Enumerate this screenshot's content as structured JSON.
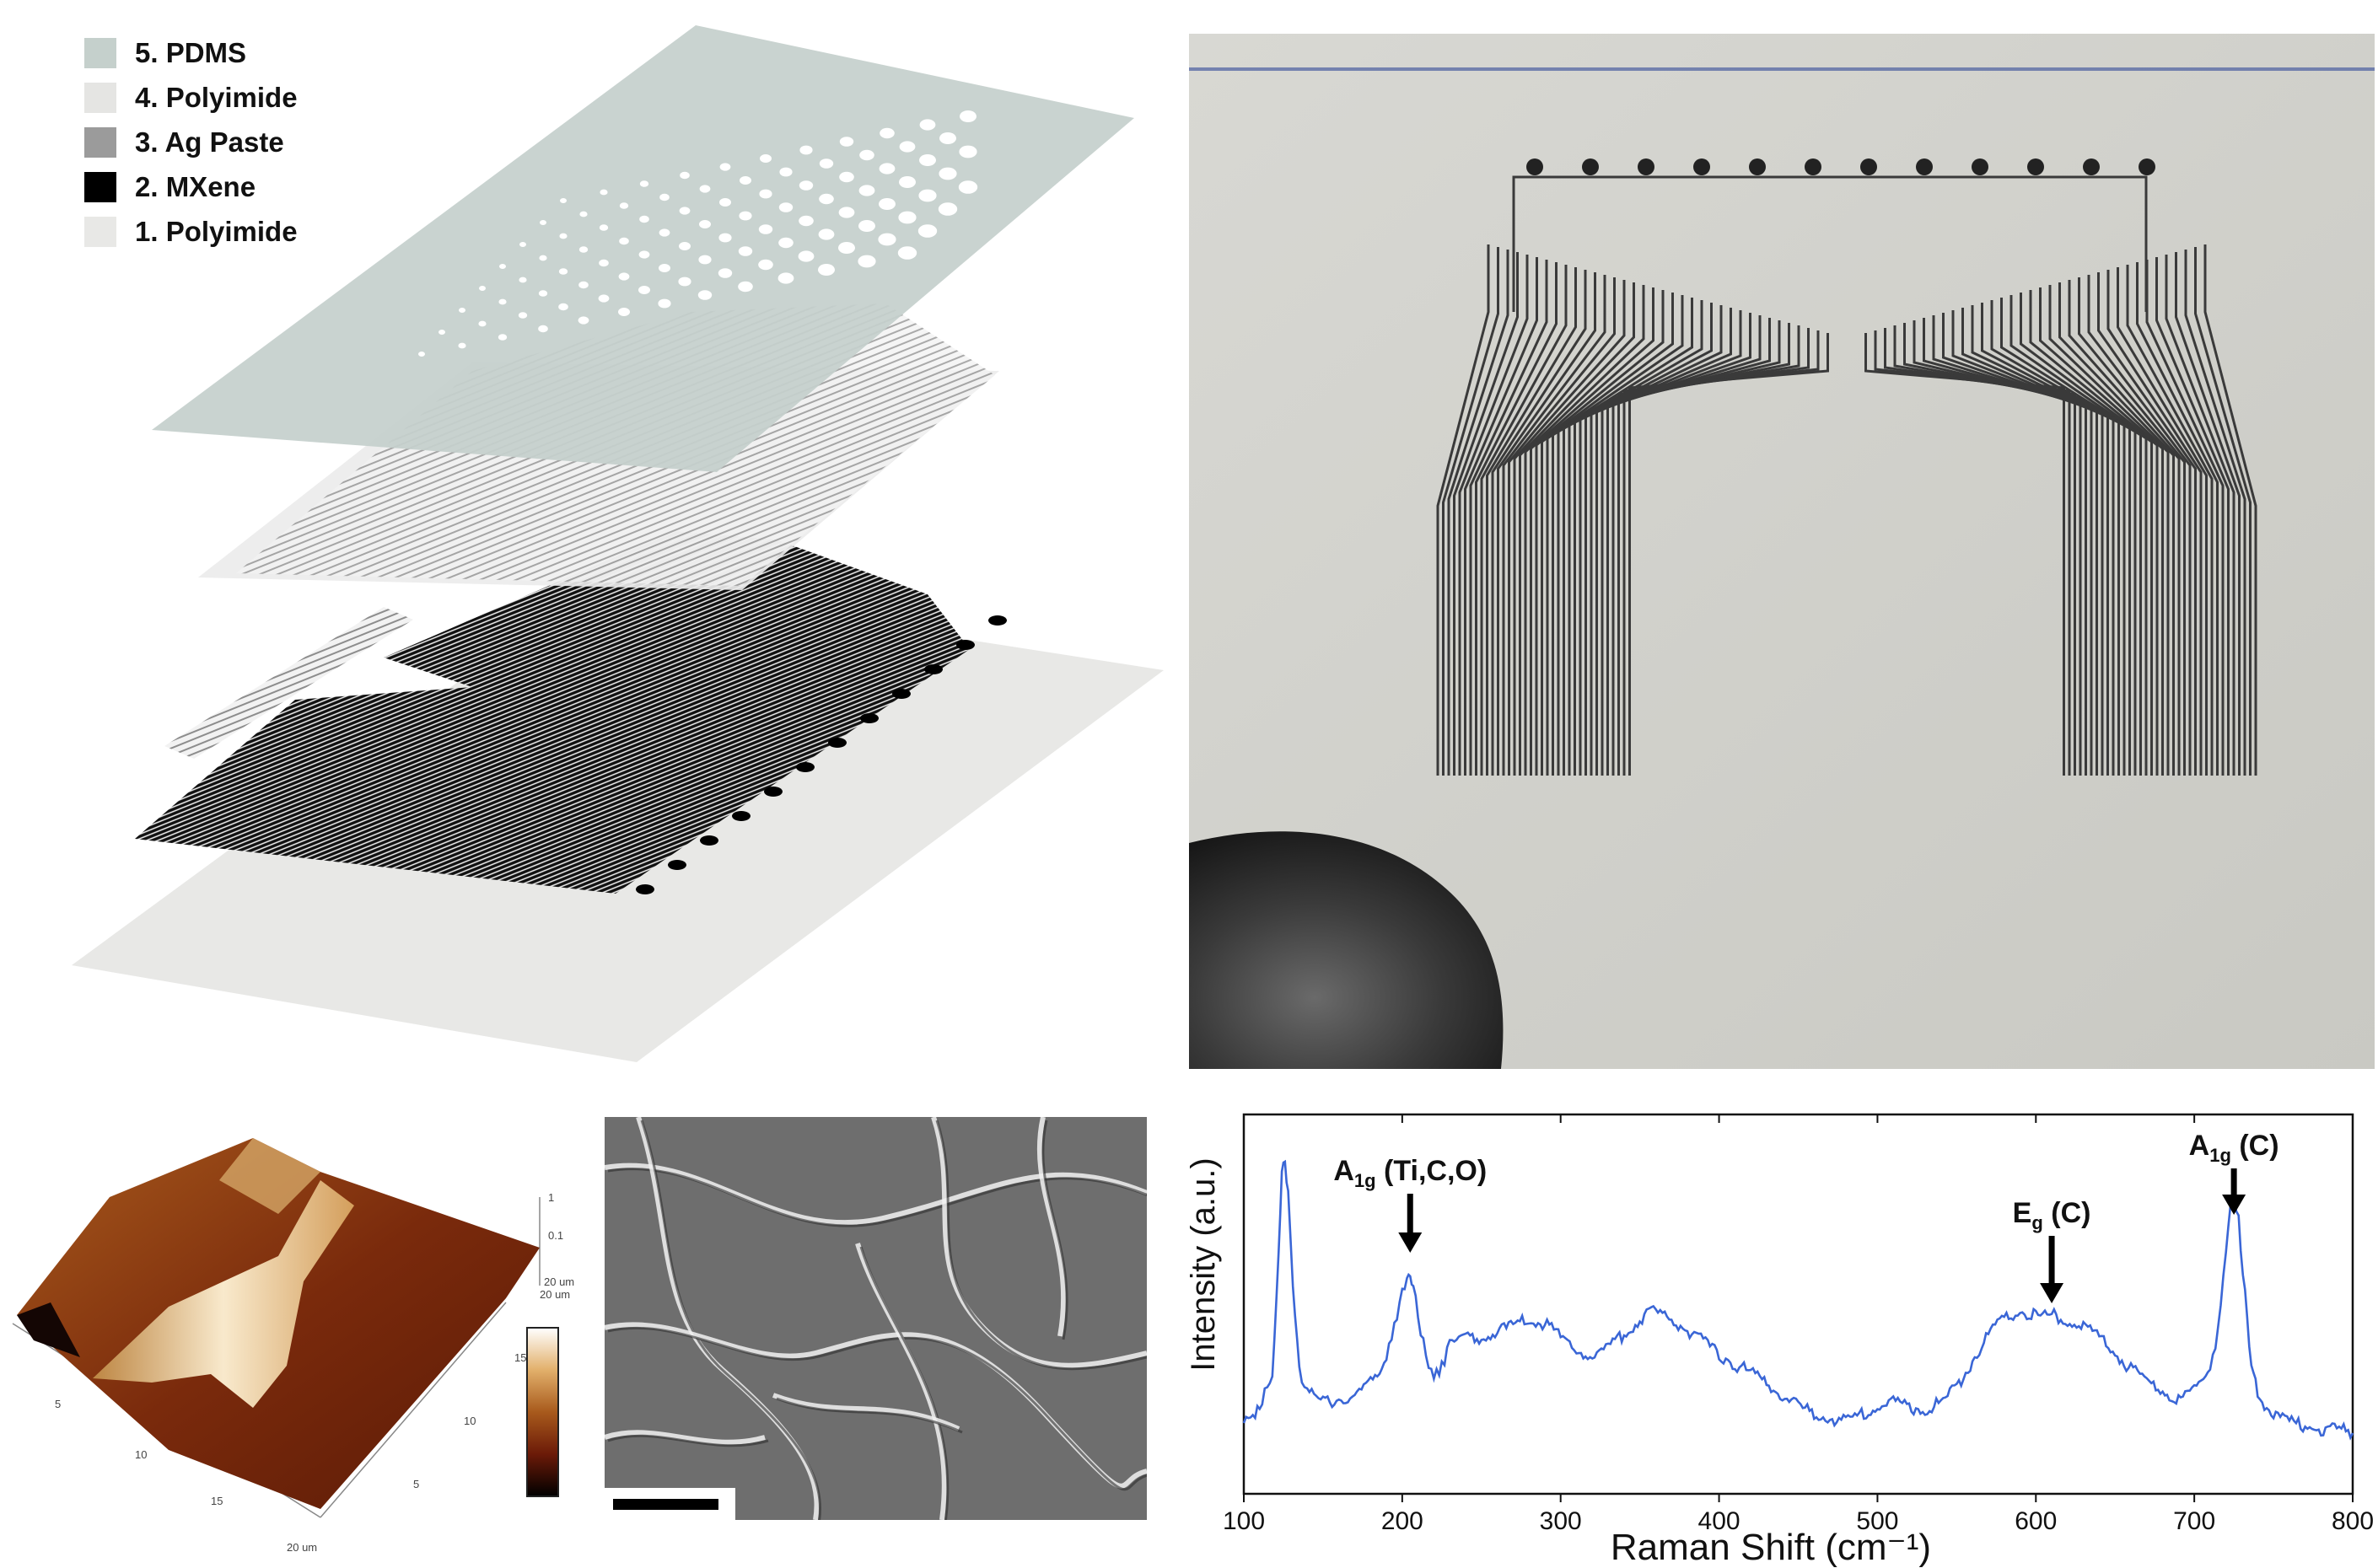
{
  "legend": {
    "items": [
      {
        "label": "5. PDMS",
        "color": "#c5d0cc"
      },
      {
        "label": "4. Polyimide",
        "color": "#e5e5e3"
      },
      {
        "label": "3. Ag Paste",
        "color": "#9b9b9b"
      },
      {
        "label": "2. MXene",
        "color": "#000000"
      },
      {
        "label": "1. Polyimide",
        "color": "#e8e8e6"
      }
    ]
  },
  "afm": {
    "z_ticks": [
      "1",
      "0.1"
    ],
    "z_unit": "20 um",
    "x_ticks": [
      "5",
      "10",
      "15",
      "20 um"
    ],
    "y_ticks": [
      "5",
      "10",
      "15",
      "20 um"
    ],
    "colors": [
      "#ffffff",
      "#e2b06b",
      "#a85a1c",
      "#6b1a08",
      "#000000"
    ]
  },
  "chart_data": {
    "type": "line",
    "title": "",
    "xlabel": "Raman Shift (cm⁻¹)",
    "ylabel": "Intensity (a.u.)",
    "xlim": [
      100,
      800
    ],
    "ylim": [
      0,
      1
    ],
    "xticks": [
      "100",
      "200",
      "300",
      "400",
      "500",
      "600",
      "700",
      "800"
    ],
    "color": "#3a66d6",
    "series": [
      {
        "x": [
          100,
          110,
          118,
          122,
          124,
          126,
          128,
          131,
          135,
          140,
          150,
          160,
          170,
          180,
          190,
          195,
          200,
          203,
          205,
          207,
          210,
          215,
          220,
          225,
          230,
          240,
          250,
          260,
          270,
          280,
          290,
          300,
          310,
          320,
          330,
          340,
          350,
          360,
          370,
          380,
          390,
          400,
          410,
          420,
          430,
          440,
          450,
          460,
          470,
          480,
          490,
          500,
          510,
          520,
          530,
          540,
          550,
          560,
          570,
          580,
          590,
          600,
          610,
          620,
          630,
          640,
          650,
          660,
          670,
          680,
          690,
          700,
          710,
          715,
          720,
          723,
          725,
          728,
          732,
          736,
          740,
          750,
          760,
          770,
          780,
          790,
          800
        ],
        "y": [
          0.2,
          0.22,
          0.32,
          0.62,
          0.85,
          0.87,
          0.8,
          0.55,
          0.32,
          0.27,
          0.24,
          0.25,
          0.26,
          0.29,
          0.36,
          0.44,
          0.53,
          0.58,
          0.58,
          0.55,
          0.46,
          0.36,
          0.31,
          0.34,
          0.39,
          0.41,
          0.41,
          0.43,
          0.44,
          0.46,
          0.45,
          0.41,
          0.38,
          0.36,
          0.38,
          0.42,
          0.46,
          0.48,
          0.46,
          0.43,
          0.4,
          0.37,
          0.34,
          0.32,
          0.29,
          0.26,
          0.23,
          0.21,
          0.2,
          0.19,
          0.21,
          0.23,
          0.24,
          0.23,
          0.22,
          0.24,
          0.28,
          0.35,
          0.42,
          0.46,
          0.48,
          0.47,
          0.47,
          0.46,
          0.44,
          0.41,
          0.37,
          0.33,
          0.3,
          0.27,
          0.25,
          0.27,
          0.33,
          0.43,
          0.64,
          0.77,
          0.78,
          0.72,
          0.53,
          0.34,
          0.26,
          0.21,
          0.19,
          0.18,
          0.17,
          0.17,
          0.16
        ]
      }
    ],
    "annotations": [
      {
        "main": "A",
        "sub": "1g",
        "rest": " (Ti,C,O)",
        "x": 205
      },
      {
        "main": "E",
        "sub": "g",
        "rest": " (C)",
        "x": 610
      },
      {
        "main": "A",
        "sub": "1g",
        "rest": " (C)",
        "x": 725
      }
    ]
  }
}
